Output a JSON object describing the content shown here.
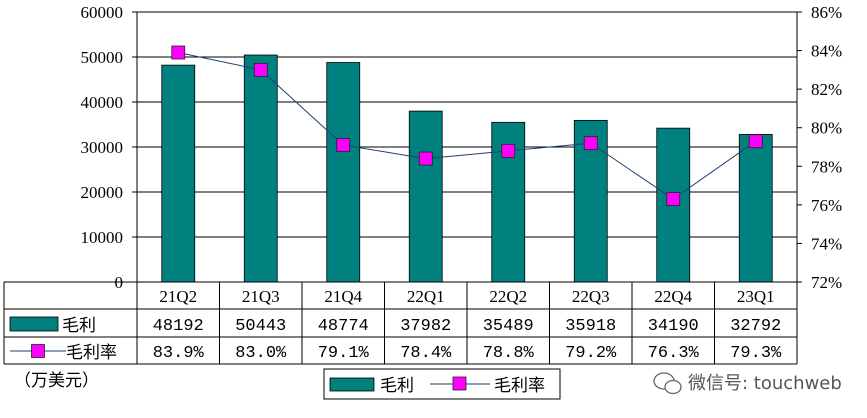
{
  "chart_data": {
    "type": "bar",
    "categories": [
      "21Q2",
      "21Q3",
      "21Q4",
      "22Q1",
      "22Q2",
      "22Q3",
      "22Q4",
      "23Q1"
    ],
    "series": [
      {
        "name": "毛利",
        "type": "bar",
        "axis": "left",
        "values": [
          48192,
          50443,
          48774,
          37982,
          35489,
          35918,
          34190,
          32792
        ],
        "value_labels": [
          "48192",
          "50443",
          "48774",
          "37982",
          "35489",
          "35918",
          "34190",
          "32792"
        ],
        "color": "#00807f"
      },
      {
        "name": "毛利率",
        "type": "line",
        "axis": "right",
        "unit": "%",
        "values": [
          83.9,
          83.0,
          79.1,
          78.4,
          78.8,
          79.2,
          76.3,
          79.3
        ],
        "value_labels": [
          "83.9%",
          "83.0%",
          "79.1%",
          "78.4%",
          "78.8%",
          "79.2%",
          "76.3%",
          "79.3%"
        ],
        "line_color": "#1f3f6f",
        "marker_color": "#ff00ff"
      }
    ],
    "y_left": {
      "lim": [
        0,
        60000
      ],
      "ticks": [
        "0",
        "10000",
        "20000",
        "30000",
        "40000",
        "50000",
        "60000"
      ]
    },
    "y_right": {
      "lim": [
        72,
        86
      ],
      "ticks": [
        "72%",
        "74%",
        "76%",
        "78%",
        "80%",
        "82%",
        "84%",
        "86%"
      ]
    },
    "unit_label": "（万美元）",
    "legend": {
      "position": "bottom-center",
      "items": [
        "毛利",
        "毛利率"
      ]
    },
    "grid": true,
    "data_table": true
  },
  "watermark": {
    "text": "微信号: touchweb"
  }
}
